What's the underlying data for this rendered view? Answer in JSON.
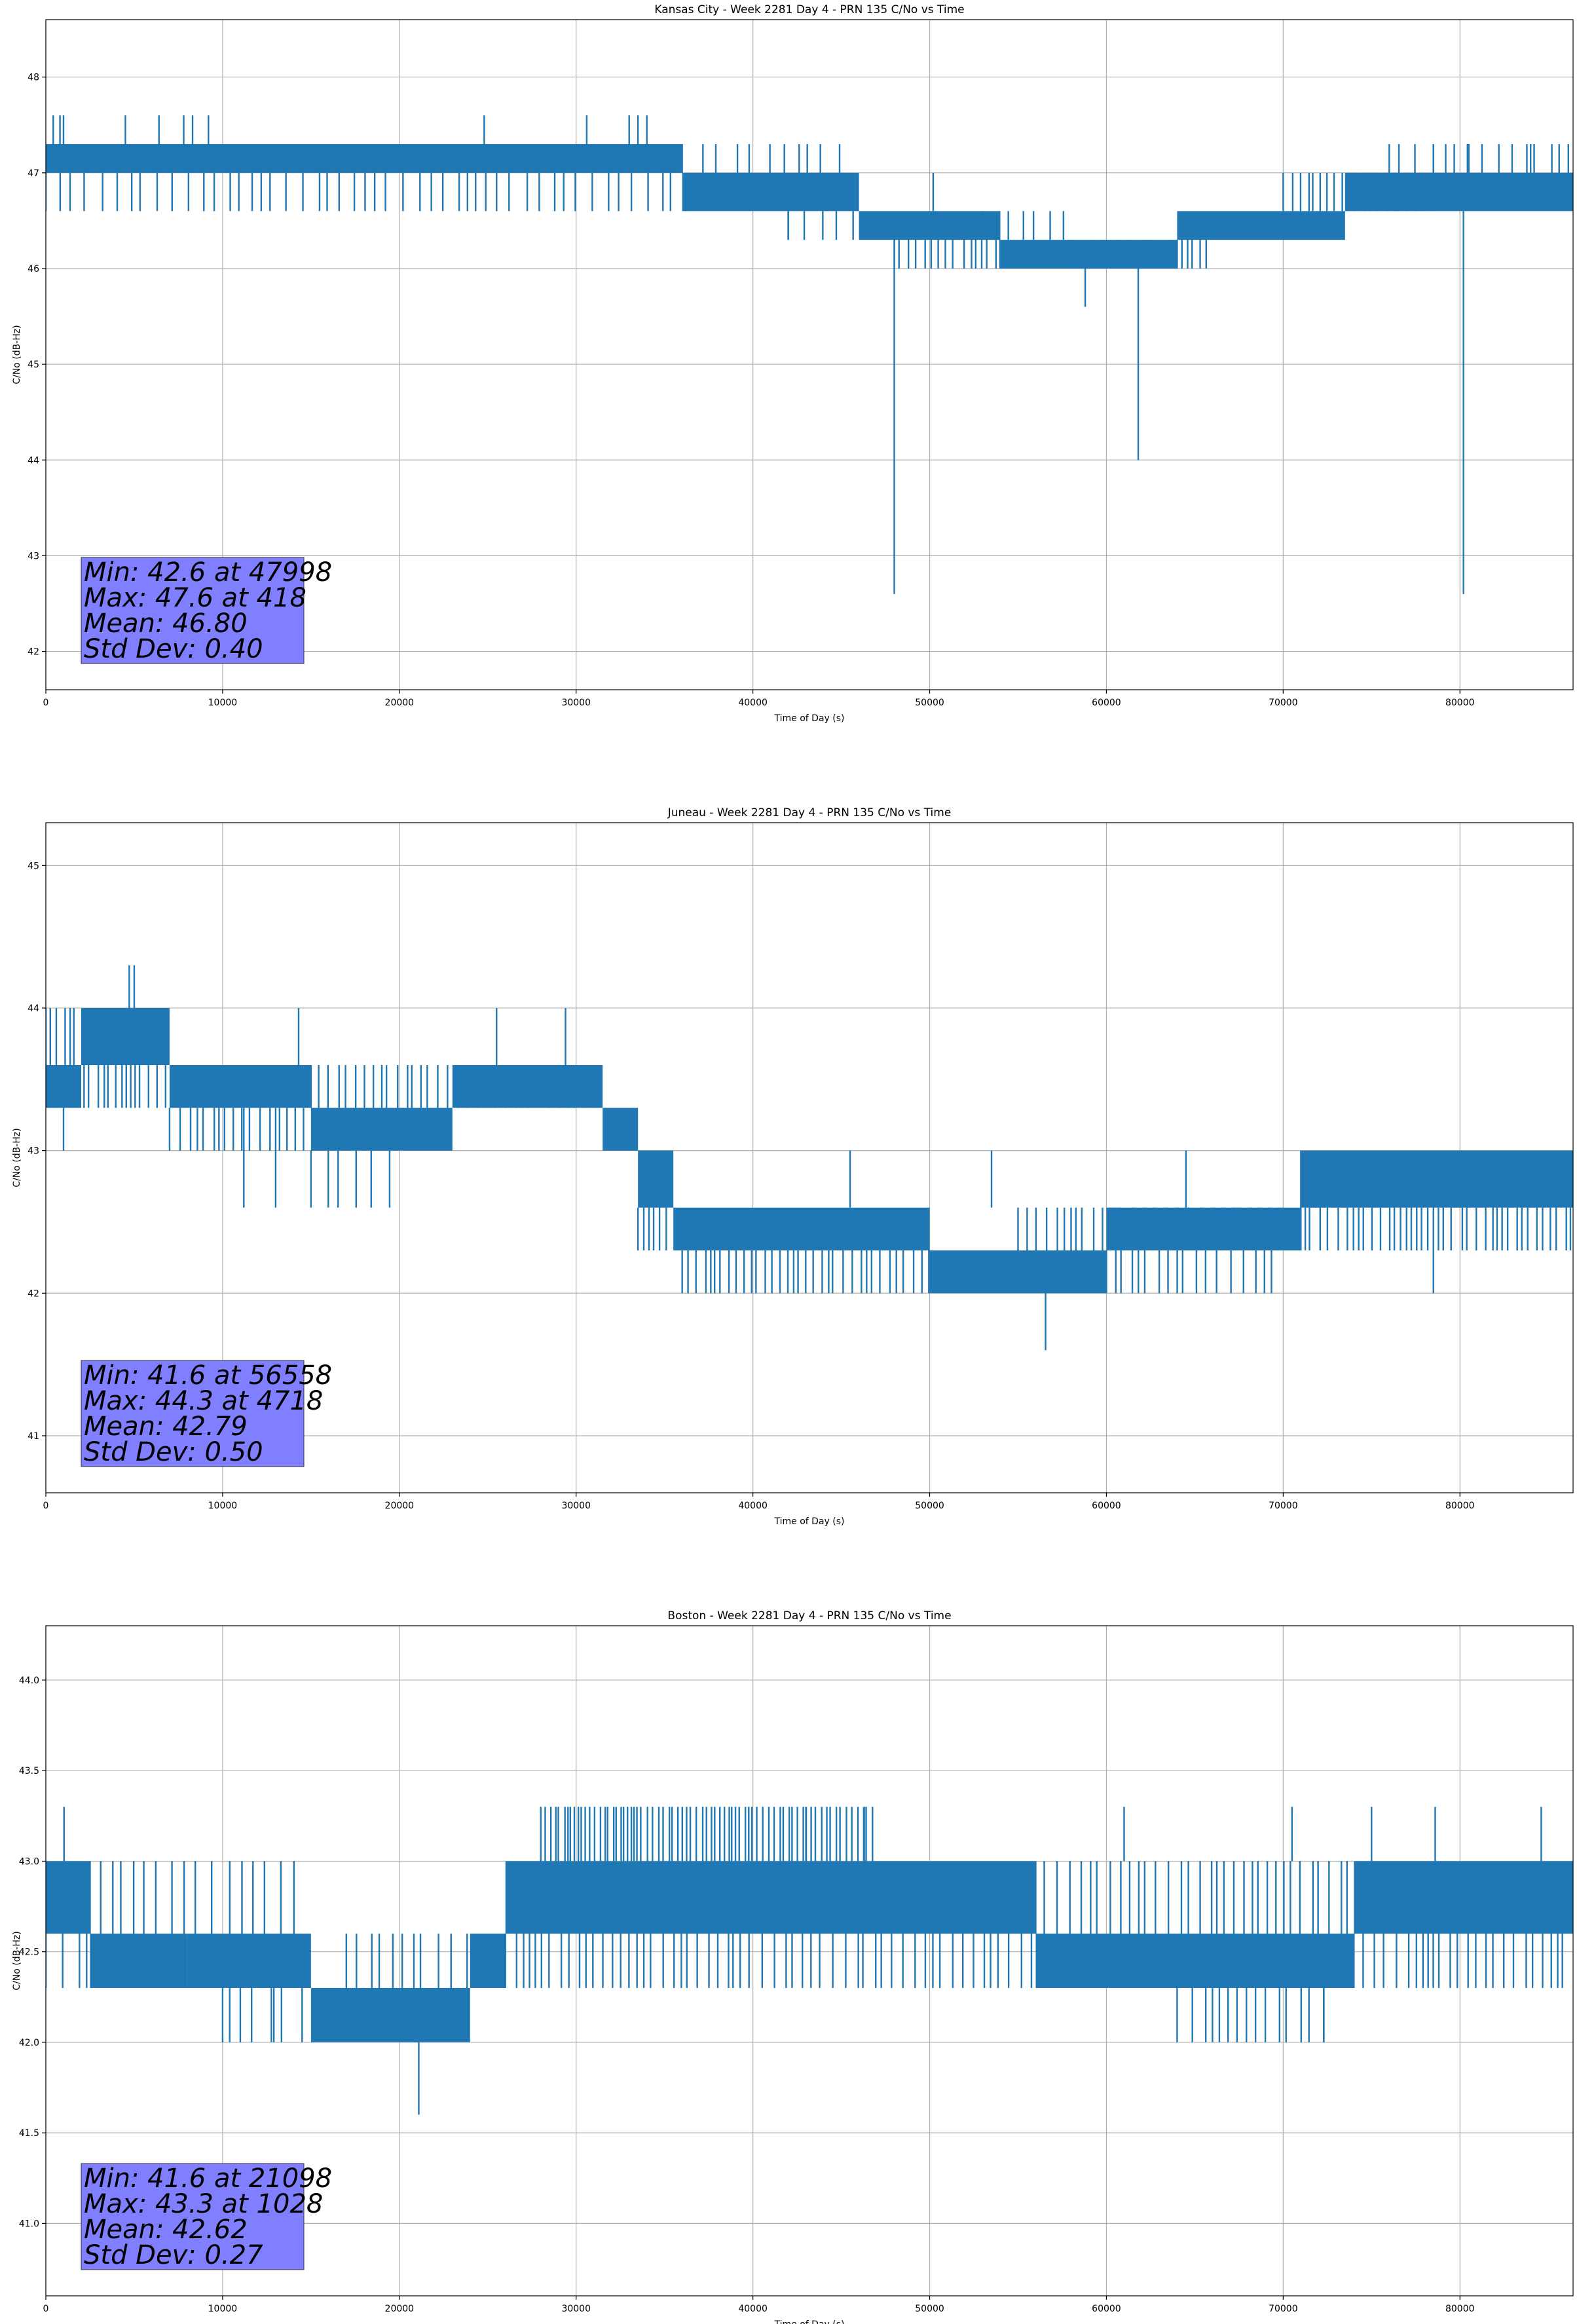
{
  "chart_data": [
    {
      "type": "line",
      "title": "Kansas City - Week 2281 Day 4 - PRN 135 C/No vs Time",
      "xlabel": "Time of Day (s)",
      "ylabel": "C/No (dB-Hz)",
      "xlim": [
        0,
        86400
      ],
      "ylim": [
        41.6,
        48.6
      ],
      "xticks": [
        0,
        10000,
        20000,
        30000,
        40000,
        50000,
        60000,
        70000,
        80000
      ],
      "xtick_labels": [
        "0",
        "10000",
        "20000",
        "30000",
        "40000",
        "50000",
        "60000",
        "70000",
        "80000"
      ],
      "yticks": [
        42,
        43,
        44,
        45,
        46,
        47,
        48
      ],
      "ytick_labels": [
        "42",
        "43",
        "44",
        "45",
        "46",
        "47",
        "48"
      ],
      "grid": true,
      "color": "#1f77b4",
      "stats": [
        "Min: 42.6 at 47998",
        "Max: 47.6 at 418",
        "Mean: 46.80",
        "Std Dev: 0.40"
      ],
      "series": [
        {
          "levels": [
            {
              "x0": 0,
              "x1": 36000,
              "low": 47.0,
              "high": 47.3
            },
            {
              "x0": 36000,
              "x1": 40000,
              "low": 46.6,
              "high": 47.0
            },
            {
              "x0": 40000,
              "x1": 46000,
              "low": 46.6,
              "high": 47.0
            },
            {
              "x0": 46000,
              "x1": 54000,
              "low": 46.3,
              "high": 46.6
            },
            {
              "x0": 54000,
              "x1": 64000,
              "low": 46.0,
              "high": 46.3
            },
            {
              "x0": 64000,
              "x1": 73500,
              "low": 46.3,
              "high": 46.6
            },
            {
              "x0": 73500,
              "x1": 86400,
              "low": 46.6,
              "high": 47.0
            }
          ],
          "spikes": [
            {
              "x": 47998,
              "from": 46.3,
              "to": 42.6
            },
            {
              "x": 61800,
              "from": 46.0,
              "to": 44.0
            },
            {
              "x": 58800,
              "from": 46.0,
              "to": 45.6
            },
            {
              "x": 80200,
              "from": 46.6,
              "to": 42.6
            },
            {
              "x": 418,
              "from": 47.3,
              "to": 47.6
            },
            {
              "x": 800,
              "from": 47.3,
              "to": 47.6
            },
            {
              "x": 1000,
              "from": 47.3,
              "to": 47.6
            },
            {
              "x": 4500,
              "from": 47.3,
              "to": 47.6
            },
            {
              "x": 6400,
              "from": 47.3,
              "to": 47.6
            },
            {
              "x": 7800,
              "from": 47.3,
              "to": 47.6
            },
            {
              "x": 8300,
              "from": 47.3,
              "to": 47.6
            },
            {
              "x": 9200,
              "from": 47.3,
              "to": 47.6
            },
            {
              "x": 24800,
              "from": 47.3,
              "to": 47.6
            },
            {
              "x": 30600,
              "from": 47.3,
              "to": 47.6
            },
            {
              "x": 33000,
              "from": 47.3,
              "to": 47.6
            },
            {
              "x": 33500,
              "from": 47.3,
              "to": 47.6
            },
            {
              "x": 34000,
              "from": 47.3,
              "to": 47.6
            },
            {
              "x": 50200,
              "from": 46.6,
              "to": 47.0
            },
            {
              "x": 42000,
              "from": 46.6,
              "to": 46.3
            },
            {
              "x": 78500,
              "from": 47.0,
              "to": 47.3
            },
            {
              "x": 80500,
              "from": 47.0,
              "to": 47.3
            },
            {
              "x": 84000,
              "from": 47.0,
              "to": 47.3
            }
          ],
          "minor": [
            {
              "x0": 0,
              "x1": 36000,
              "level": 46.6,
              "step": 700
            },
            {
              "x0": 48000,
              "x1": 54000,
              "level": 46.0,
              "step": 450
            },
            {
              "x0": 64000,
              "x1": 66000,
              "level": 46.0,
              "step": 350
            },
            {
              "x0": 70000,
              "x1": 78500,
              "level": 47.0,
              "step": 400
            },
            {
              "x0": 76000,
              "x1": 86400,
              "level": 47.3,
              "step": 700
            },
            {
              "x0": 36000,
              "x1": 46000,
              "level": 47.3,
              "step": 900
            },
            {
              "x0": 42000,
              "x1": 52000,
              "level": 46.3,
              "step": 700
            },
            {
              "x0": 53000,
              "x1": 58000,
              "level": 46.6,
              "step": 800
            },
            {
              "x0": 58000,
              "x1": 66000,
              "level": 46.3,
              "step": 900
            }
          ]
        }
      ]
    },
    {
      "type": "line",
      "title": "Juneau - Week 2281 Day 4 - PRN 135 C/No vs Time",
      "xlabel": "Time of Day (s)",
      "ylabel": "C/No (dB-Hz)",
      "xlim": [
        0,
        86400
      ],
      "ylim": [
        40.6,
        45.3
      ],
      "xticks": [
        0,
        10000,
        20000,
        30000,
        40000,
        50000,
        60000,
        70000,
        80000
      ],
      "xtick_labels": [
        "0",
        "10000",
        "20000",
        "30000",
        "40000",
        "50000",
        "60000",
        "70000",
        "80000"
      ],
      "yticks": [
        41,
        42,
        43,
        44,
        45
      ],
      "ytick_labels": [
        "41",
        "42",
        "43",
        "44",
        "45"
      ],
      "grid": true,
      "color": "#1f77b4",
      "stats": [
        "Min: 41.6 at 56558",
        "Max: 44.3 at 4718",
        "Mean: 42.79",
        "Std Dev: 0.50"
      ],
      "series": [
        {
          "levels": [
            {
              "x0": 0,
              "x1": 2000,
              "low": 43.3,
              "high": 43.6
            },
            {
              "x0": 2000,
              "x1": 7000,
              "low": 43.6,
              "high": 44.0
            },
            {
              "x0": 7000,
              "x1": 15000,
              "low": 43.3,
              "high": 43.6
            },
            {
              "x0": 15000,
              "x1": 23000,
              "low": 43.0,
              "high": 43.3
            },
            {
              "x0": 23000,
              "x1": 31500,
              "low": 43.3,
              "high": 43.6
            },
            {
              "x0": 31500,
              "x1": 33500,
              "low": 43.0,
              "high": 43.3
            },
            {
              "x0": 33500,
              "x1": 35500,
              "low": 42.6,
              "high": 43.0
            },
            {
              "x0": 35500,
              "x1": 50000,
              "low": 42.3,
              "high": 42.6
            },
            {
              "x0": 50000,
              "x1": 60000,
              "low": 42.0,
              "high": 42.3
            },
            {
              "x0": 60000,
              "x1": 71000,
              "low": 42.3,
              "high": 42.6
            },
            {
              "x0": 71000,
              "x1": 86400,
              "low": 42.6,
              "high": 43.0
            }
          ],
          "spikes": [
            {
              "x": 56558,
              "from": 42.0,
              "to": 41.6
            },
            {
              "x": 4718,
              "from": 44.0,
              "to": 44.3
            },
            {
              "x": 5000,
              "from": 44.0,
              "to": 44.3
            },
            {
              "x": 14300,
              "from": 43.6,
              "to": 44.0
            },
            {
              "x": 25500,
              "from": 43.6,
              "to": 44.0
            },
            {
              "x": 29400,
              "from": 43.6,
              "to": 44.0
            },
            {
              "x": 1000,
              "from": 43.3,
              "to": 43.0
            },
            {
              "x": 11200,
              "from": 43.3,
              "to": 42.6
            },
            {
              "x": 13000,
              "from": 43.3,
              "to": 42.6
            },
            {
              "x": 45500,
              "from": 42.6,
              "to": 43.0
            },
            {
              "x": 53500,
              "from": 42.6,
              "to": 43.0
            },
            {
              "x": 64500,
              "from": 42.6,
              "to": 43.0
            },
            {
              "x": 78500,
              "from": 42.6,
              "to": 42.0
            },
            {
              "x": 83500,
              "from": 42.6,
              "to": 42.3
            }
          ],
          "minor": [
            {
              "x0": 0,
              "x1": 7000,
              "level": 43.3,
              "step": 400
            },
            {
              "x0": 0,
              "x1": 7000,
              "level": 44.0,
              "step": 350
            },
            {
              "x0": 7000,
              "x1": 23000,
              "level": 43.0,
              "step": 500
            },
            {
              "x0": 15000,
              "x1": 20000,
              "level": 42.6,
              "step": 700
            },
            {
              "x0": 15000,
              "x1": 31500,
              "level": 43.6,
              "step": 450
            },
            {
              "x0": 33500,
              "x1": 36000,
              "level": 42.3,
              "step": 450
            },
            {
              "x0": 36000,
              "x1": 50000,
              "level": 42.0,
              "step": 400
            },
            {
              "x0": 55000,
              "x1": 70000,
              "level": 42.6,
              "step": 500
            },
            {
              "x0": 60000,
              "x1": 70000,
              "level": 42.0,
              "step": 550
            },
            {
              "x0": 71000,
              "x1": 86400,
              "level": 42.3,
              "step": 450
            },
            {
              "x0": 71000,
              "x1": 86400,
              "level": 43.0,
              "step": 500
            }
          ]
        }
      ]
    },
    {
      "type": "line",
      "title": "Boston - Week 2281 Day 4 - PRN 135 C/No vs Time",
      "xlabel": "Time of Day (s)",
      "ylabel": "C/No (dB-Hz)",
      "xlim": [
        0,
        86400
      ],
      "ylim": [
        40.6,
        44.3
      ],
      "xticks": [
        0,
        10000,
        20000,
        30000,
        40000,
        50000,
        60000,
        70000,
        80000
      ],
      "xtick_labels": [
        "0",
        "10000",
        "20000",
        "30000",
        "40000",
        "50000",
        "60000",
        "70000",
        "80000"
      ],
      "yticks": [
        41.0,
        41.5,
        42.0,
        42.5,
        43.0,
        43.5,
        44.0
      ],
      "ytick_labels": [
        "41.0",
        "41.5",
        "42.0",
        "42.5",
        "43.0",
        "43.5",
        "44.0"
      ],
      "grid": true,
      "color": "#1f77b4",
      "stats": [
        "Min: 41.6 at 21098",
        "Max: 43.3 at 1028",
        "Mean: 42.62",
        "Std Dev: 0.27"
      ],
      "series": [
        {
          "levels": [
            {
              "x0": 0,
              "x1": 2500,
              "low": 42.6,
              "high": 43.0
            },
            {
              "x0": 2500,
              "x1": 8000,
              "low": 42.3,
              "high": 42.6
            },
            {
              "x0": 8000,
              "x1": 15000,
              "low": 42.3,
              "high": 42.6
            },
            {
              "x0": 15000,
              "x1": 24000,
              "low": 42.0,
              "high": 42.3
            },
            {
              "x0": 24000,
              "x1": 26000,
              "low": 42.3,
              "high": 42.6
            },
            {
              "x0": 26000,
              "x1": 52000,
              "low": 42.6,
              "high": 43.0
            },
            {
              "x0": 52000,
              "x1": 56000,
              "low": 42.6,
              "high": 43.0
            },
            {
              "x0": 56000,
              "x1": 74000,
              "low": 42.3,
              "high": 42.6
            },
            {
              "x0": 74000,
              "x1": 86400,
              "low": 42.6,
              "high": 43.0
            }
          ],
          "spikes": [
            {
              "x": 21098,
              "from": 42.0,
              "to": 41.6
            },
            {
              "x": 1028,
              "from": 43.0,
              "to": 43.3
            },
            {
              "x": 10400,
              "from": 42.3,
              "to": 42.0
            },
            {
              "x": 12900,
              "from": 42.3,
              "to": 42.0
            },
            {
              "x": 43000,
              "from": 43.0,
              "to": 43.3
            },
            {
              "x": 46300,
              "from": 43.0,
              "to": 43.3
            },
            {
              "x": 61000,
              "from": 43.0,
              "to": 43.3
            },
            {
              "x": 70500,
              "from": 43.0,
              "to": 43.3
            },
            {
              "x": 75000,
              "from": 43.0,
              "to": 43.3
            },
            {
              "x": 78600,
              "from": 43.0,
              "to": 43.3
            },
            {
              "x": 84600,
              "from": 43.0,
              "to": 43.3
            },
            {
              "x": 72300,
              "from": 42.3,
              "to": 42.0
            },
            {
              "x": 66000,
              "from": 42.3,
              "to": 42.0
            }
          ],
          "minor": [
            {
              "x0": 2500,
              "x1": 15000,
              "level": 43.0,
              "step": 700
            },
            {
              "x0": 0,
              "x1": 9000,
              "level": 42.3,
              "step": 650
            },
            {
              "x0": 10000,
              "x1": 24000,
              "level": 42.0,
              "step": 800
            },
            {
              "x0": 17000,
              "x1": 24000,
              "level": 42.6,
              "step": 700
            },
            {
              "x0": 28000,
              "x1": 47000,
              "level": 43.3,
              "step": 260
            },
            {
              "x0": 26000,
              "x1": 56000,
              "level": 42.3,
              "step": 500
            },
            {
              "x0": 56000,
              "x1": 74000,
              "level": 43.0,
              "step": 520
            },
            {
              "x0": 64000,
              "x1": 73000,
              "level": 42.0,
              "step": 600
            },
            {
              "x0": 74000,
              "x1": 86400,
              "level": 42.3,
              "step": 500
            }
          ]
        }
      ]
    }
  ]
}
